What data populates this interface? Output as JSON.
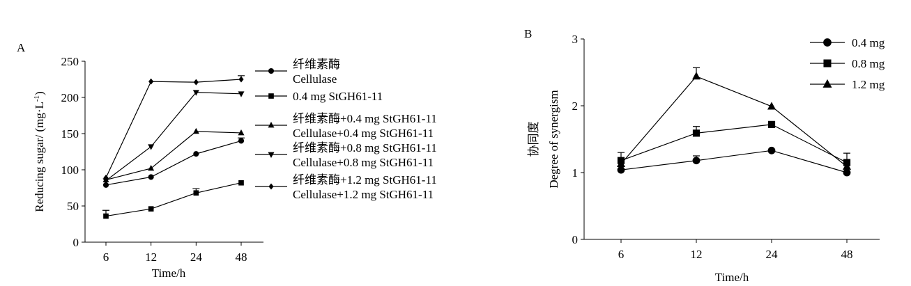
{
  "chart_data": [
    {
      "panel_label": "A",
      "type": "line",
      "xlabel": "Time/h",
      "ylabel": "Reducing sugar/ (mg·L",
      "ylabel_sup": "-1",
      "ylabel_end": ")",
      "categories": [
        "6",
        "12",
        "24",
        "48"
      ],
      "ylim": [
        0,
        250
      ],
      "yticks": [
        0,
        50,
        100,
        150,
        200,
        250
      ],
      "grid": false,
      "legend_position": "right",
      "series": [
        {
          "marker": "circle",
          "legend_line1": "纤维素酶",
          "legend_line2": "Cellulase",
          "values": [
            79,
            90,
            122,
            140
          ],
          "errors": [
            0,
            0,
            0,
            4
          ]
        },
        {
          "marker": "square",
          "legend_line1": "0.4 mg StGH61-11",
          "legend_line2": "",
          "values": [
            36,
            46,
            68,
            82
          ],
          "errors": [
            8,
            0,
            6,
            0
          ]
        },
        {
          "marker": "triangle-up",
          "legend_line1": "纤维素酶+0.4 mg StGH61-11",
          "legend_line2": "Cellulase+0.4 mg StGH61-11",
          "values": [
            86,
            102,
            153,
            151
          ],
          "errors": [
            0,
            0,
            0,
            0
          ]
        },
        {
          "marker": "triangle-down",
          "legend_line1": "纤维素酶+0.8 mg StGH61-11",
          "legend_line2": "Cellulase+0.8 mg StGH61-11",
          "values": [
            85,
            132,
            207,
            205
          ],
          "errors": [
            0,
            0,
            0,
            0
          ]
        },
        {
          "marker": "diamond",
          "legend_line1": "纤维素酶+1.2  mg StGH61-11",
          "legend_line2": "Cellulase+1.2  mg StGH61-11",
          "values": [
            89,
            222,
            221,
            225
          ],
          "errors": [
            0,
            0,
            0,
            5
          ]
        }
      ]
    },
    {
      "panel_label": "B",
      "type": "line",
      "xlabel": "Time/h",
      "ylabel_cn": "协同度",
      "ylabel": "Degree of synergism",
      "categories": [
        "6",
        "12",
        "24",
        "48"
      ],
      "ylim": [
        0,
        3
      ],
      "yticks": [
        0,
        1,
        2,
        3
      ],
      "grid": false,
      "legend_position": "top-right",
      "series": [
        {
          "marker": "circle",
          "name": "0.4 mg",
          "values": [
            1.04,
            1.18,
            1.33,
            1.0
          ],
          "errors": [
            0,
            0.07,
            0,
            0
          ]
        },
        {
          "marker": "square",
          "name": "0.8 mg",
          "values": [
            1.18,
            1.59,
            1.72,
            1.15
          ],
          "errors": [
            0.12,
            0.1,
            0,
            0.14
          ]
        },
        {
          "marker": "triangle-up",
          "name": "1.2 mg",
          "values": [
            1.13,
            2.44,
            1.99,
            1.09
          ],
          "errors": [
            0,
            0.13,
            0,
            0
          ]
        }
      ]
    }
  ]
}
